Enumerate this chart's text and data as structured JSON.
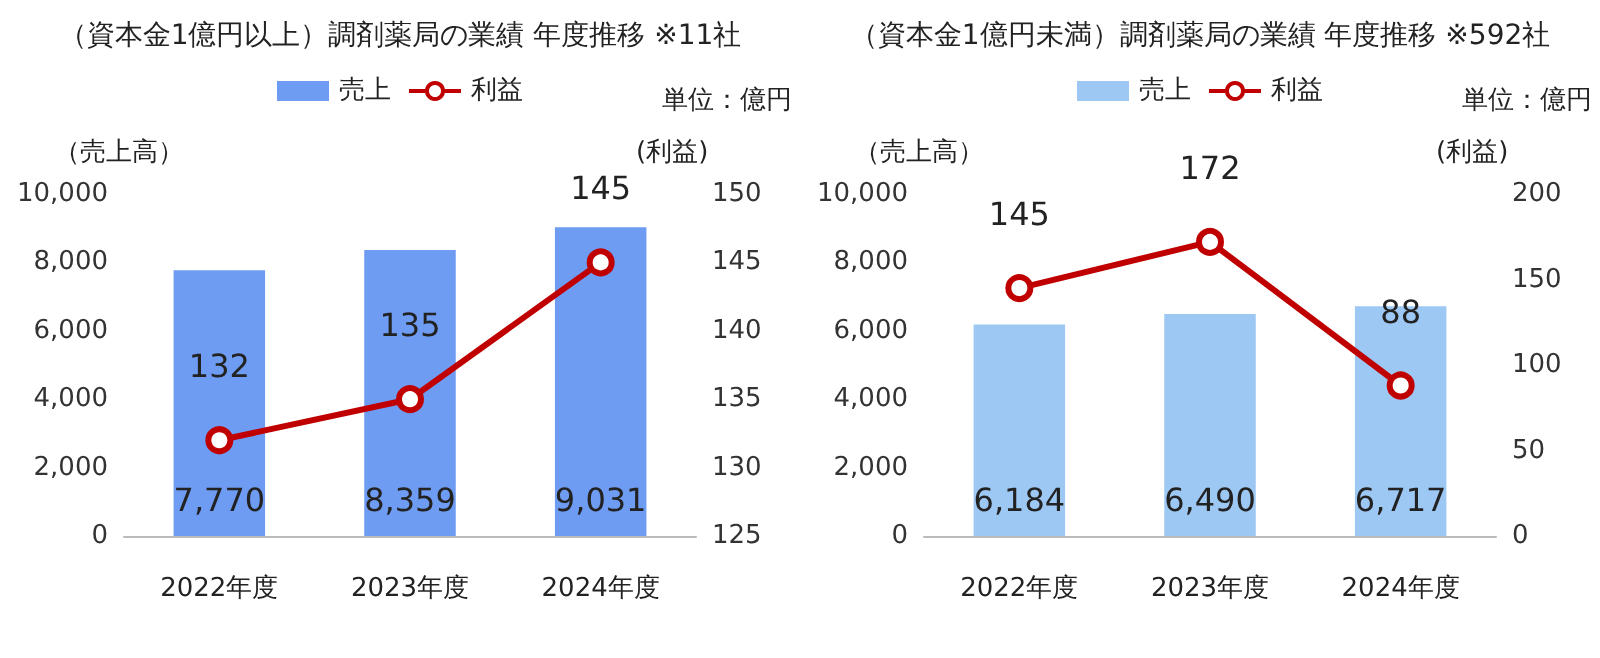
{
  "chart_data": [
    {
      "type": "bar",
      "title": "（資本金1億円以上）調剤薬局の業績 年度推移 ※11社",
      "categories": [
        "2022年度",
        "2023年度",
        "2024年度"
      ],
      "series": [
        {
          "name": "売上",
          "color": "#6e9cf3",
          "values": [
            7770,
            8359,
            9031
          ],
          "value_labels": [
            "7,770",
            "8,359",
            "9,031"
          ]
        },
        {
          "name": "利益",
          "type": "line",
          "axis": "y2",
          "color": "#c00000",
          "values": [
            132,
            135,
            145
          ],
          "value_labels": [
            "132",
            "135",
            "145"
          ]
        }
      ],
      "ylabel": "（売上高）",
      "y2label": "(利益)",
      "annotations": [
        "単位：億円"
      ],
      "ylim": [
        0,
        10000
      ],
      "yticks": [
        0,
        {
          "value": 2000,
          "label": "2,000"
        },
        {
          "value": 4000,
          "label": "4,000"
        },
        {
          "value": 6000,
          "label": "6,000"
        },
        {
          "value": 8000,
          "label": "8,000"
        },
        {
          "value": 10000,
          "label": "10,000"
        }
      ],
      "y2lim": [
        125,
        150
      ],
      "y2ticks": [
        125,
        130,
        135,
        140,
        145,
        150
      ],
      "legend": "top",
      "grid": false,
      "marker": "circle"
    },
    {
      "type": "bar",
      "title": "（資本金1億円未満）調剤薬局の業績 年度推移 ※592社",
      "categories": [
        "2022年度",
        "2023年度",
        "2024年度"
      ],
      "series": [
        {
          "name": "売上",
          "color": "#9ec8f4",
          "values": [
            6184,
            6490,
            6717
          ],
          "value_labels": [
            "6,184",
            "6,490",
            "6,717"
          ]
        },
        {
          "name": "利益",
          "type": "line",
          "axis": "y2",
          "color": "#c00000",
          "values": [
            145,
            172,
            88
          ],
          "value_labels": [
            "145",
            "172",
            "88"
          ]
        }
      ],
      "ylabel": "（売上高）",
      "y2label": "(利益)",
      "annotations": [
        "単位：億円"
      ],
      "ylim": [
        0,
        10000
      ],
      "yticks": [
        0,
        {
          "value": 2000,
          "label": "2,000"
        },
        {
          "value": 4000,
          "label": "4,000"
        },
        {
          "value": 6000,
          "label": "6,000"
        },
        {
          "value": 8000,
          "label": "8,000"
        },
        {
          "value": 10000,
          "label": "10,000"
        }
      ],
      "y2lim": [
        0,
        200
      ],
      "y2ticks": [
        0,
        50,
        100,
        150,
        200
      ],
      "legend": "top",
      "grid": false,
      "marker": "circle"
    }
  ]
}
